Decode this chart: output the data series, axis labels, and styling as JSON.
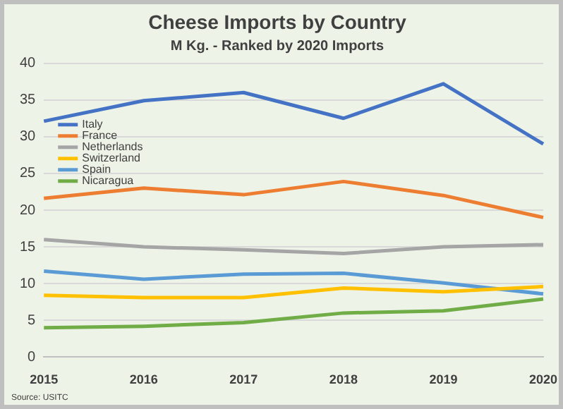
{
  "chart_data": {
    "type": "line",
    "title": "Cheese Imports by Country",
    "subtitle": "M Kg. - Ranked by 2020 Imports",
    "categories": [
      "2015",
      "2016",
      "2017",
      "2018",
      "2019",
      "2020"
    ],
    "series": [
      {
        "name": "Italy",
        "color": "#4472c4",
        "values": [
          32.1,
          34.9,
          36,
          32.5,
          37.2,
          29
        ]
      },
      {
        "name": "France",
        "color": "#ed7d31",
        "values": [
          21.6,
          23,
          22.1,
          23.9,
          22,
          19
        ]
      },
      {
        "name": "Netherlands",
        "color": "#a5a5a5",
        "values": [
          16,
          15,
          14.6,
          14.1,
          15,
          15.3
        ]
      },
      {
        "name": "Switzerland",
        "color": "#ffc000",
        "values": [
          8.4,
          8.1,
          8.1,
          9.4,
          8.9,
          9.6
        ]
      },
      {
        "name": "Spain",
        "color": "#5b9bd5",
        "values": [
          11.7,
          10.6,
          11.3,
          11.4,
          10.1,
          8.6
        ]
      },
      {
        "name": "Nicaragua",
        "color": "#70ad47",
        "values": [
          4,
          4.2,
          4.7,
          6,
          6.3,
          7.9
        ]
      }
    ],
    "ylim": [
      0,
      40
    ],
    "yticks": [
      0,
      5,
      10,
      15,
      20,
      25,
      30,
      35,
      40
    ],
    "grid": "y",
    "legend": "top left",
    "marker": "none",
    "line_style": "solid",
    "annotations": [
      "Source: USITC"
    ]
  }
}
